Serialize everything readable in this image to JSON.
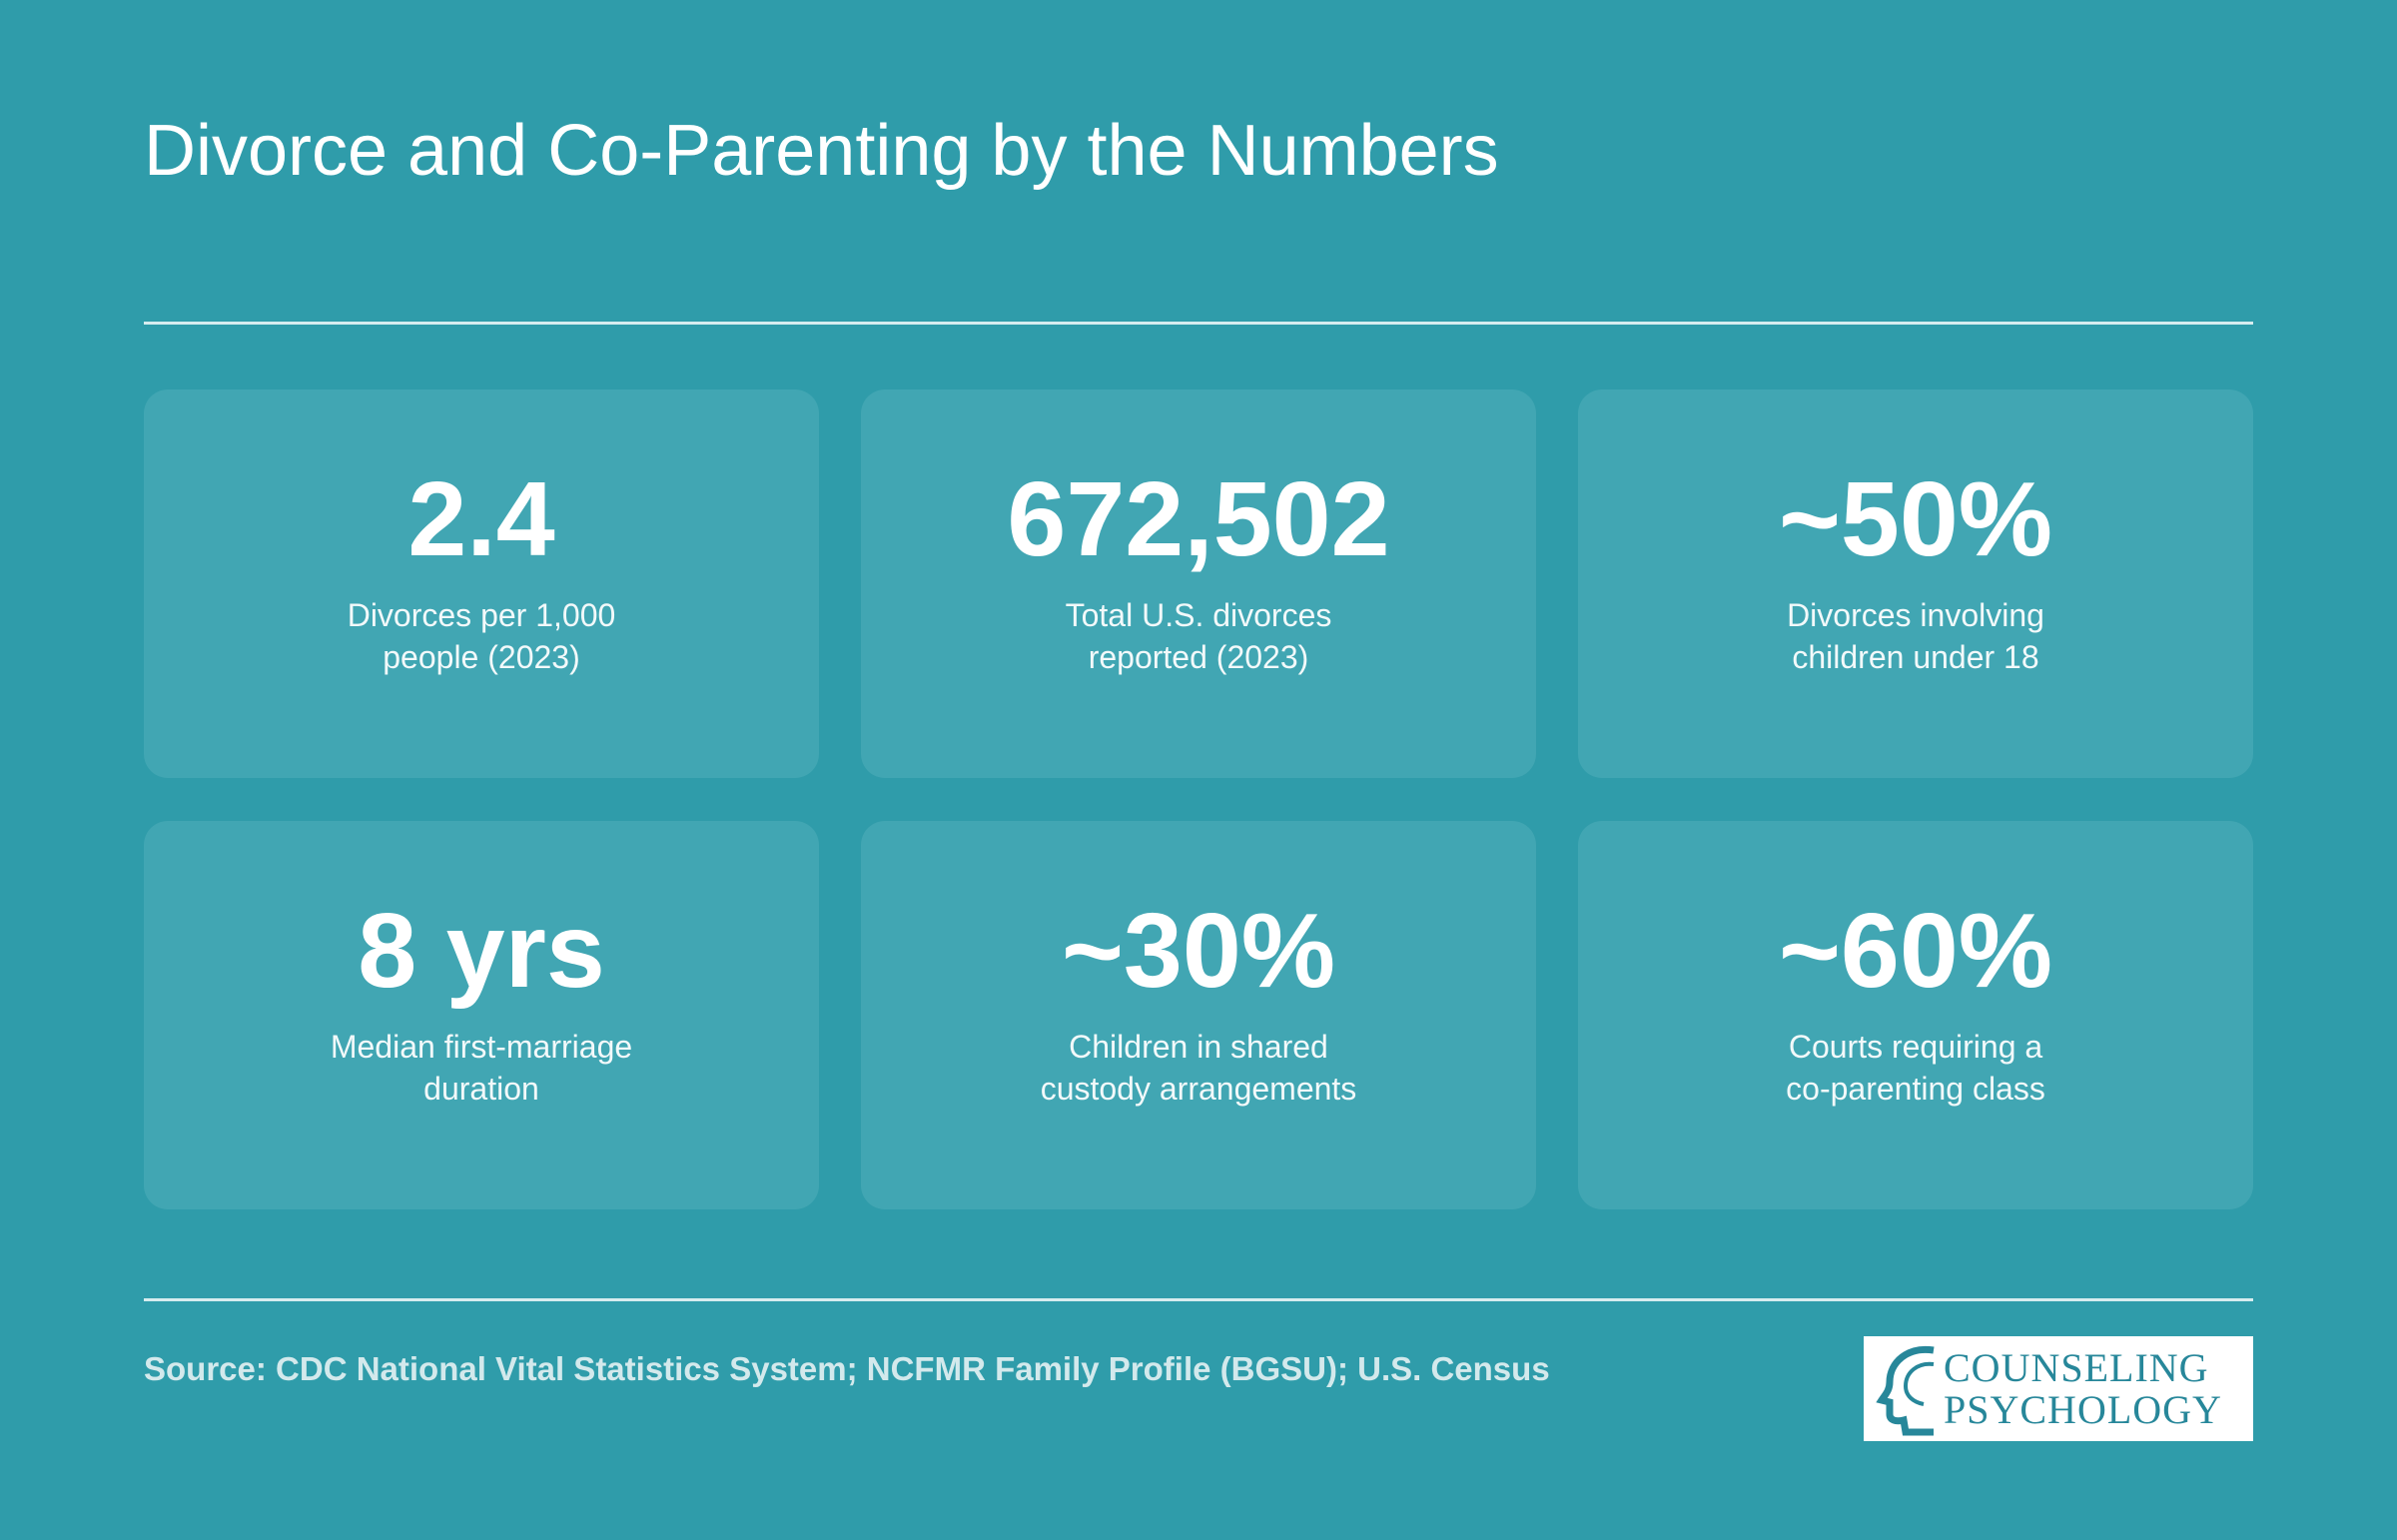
{
  "header": {
    "title": "Divorce and Co-Parenting by the Numbers"
  },
  "cards": [
    {
      "value": "2.4",
      "label": [
        "Divorces per 1,000",
        "people (2023)"
      ]
    },
    {
      "value": "672,502",
      "label": [
        "Total U.S. divorces",
        "reported (2023)"
      ]
    },
    {
      "value": "~50%",
      "label": [
        "Divorces involving",
        "children under 18"
      ]
    },
    {
      "value": "8 yrs",
      "label": [
        "Median first-marriage",
        "duration"
      ]
    },
    {
      "value": "~30%",
      "label": [
        "Children in shared",
        "custody arrangements"
      ]
    },
    {
      "value": "~60%",
      "label": [
        "Courts requiring a",
        "co-parenting class"
      ]
    }
  ],
  "footer": {
    "source": "Source: CDC National Vital Statistics System; NCFMR Family Profile (BGSU); U.S. Census",
    "logo": [
      "COUNSELING",
      "PSYCHOLOGY"
    ]
  }
}
